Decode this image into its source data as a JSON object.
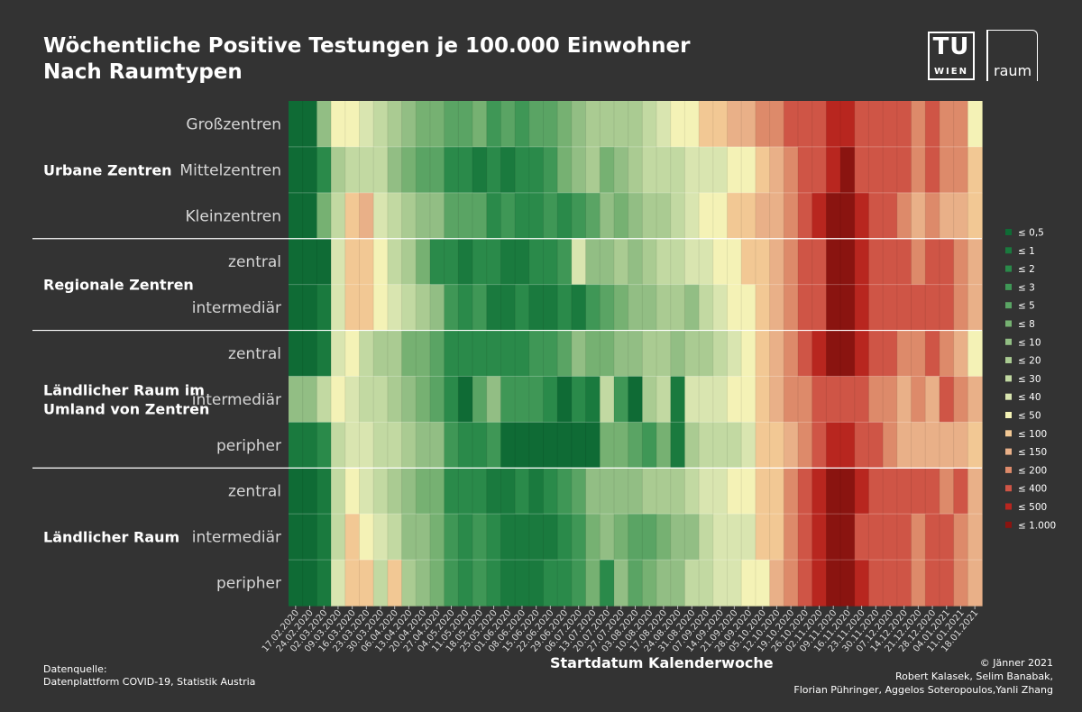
{
  "header": {
    "title_line1": "Wöchentliche Positive Testungen je 100.000 Einwohner",
    "title_line2": "Nach Raumtypen"
  },
  "logos": {
    "tu_text": "TU",
    "wien_text": "WIEN",
    "raum_text": "raum"
  },
  "footer": {
    "source_line1": "Datenquelle:",
    "source_line2": "Datenplattform COVID-19, Statistik Austria",
    "credit_line1": "© Jänner 2021",
    "credit_line2": "Robert Kalasek, Selim Banabak,",
    "credit_line3": "Florian Pühringer, Aggelos Soteropoulos,Yanli Zhang"
  },
  "chart_data": {
    "type": "heatmap",
    "xlabel": "Startdatum Kalenderwoche",
    "x": [
      "17.02.2020",
      "24.02.2020",
      "02.03.2020",
      "09.03.2020",
      "16.03.2020",
      "23.03.2020",
      "30.03.2020",
      "06.04.2020",
      "13.04.2020",
      "20.04.2020",
      "27.04.2020",
      "04.05.2020",
      "11.05.2020",
      "18.05.2020",
      "25.05.2020",
      "01.06.2020",
      "08.06.2020",
      "15.06.2020",
      "22.06.2020",
      "29.06.2020",
      "06.07.2020",
      "13.07.2020",
      "20.07.2020",
      "27.07.2020",
      "03.08.2020",
      "10.08.2020",
      "17.08.2020",
      "24.08.2020",
      "31.08.2020",
      "07.09.2020",
      "14.09.2020",
      "21.09.2020",
      "28.09.2020",
      "05.10.2020",
      "12.10.2020",
      "19.10.2020",
      "26.10.2020",
      "02.11.2020",
      "09.11.2020",
      "16.11.2020",
      "23.11.2020",
      "30.11.2020",
      "07.12.2020",
      "14.12.2020",
      "21.12.2020",
      "28.12.2020",
      "04.01.2021",
      "11.01.2021",
      "18.01.2021"
    ],
    "groups": [
      {
        "name": "Urbane Zentren",
        "rows": [
          "Großzentren",
          "Mittelzentren",
          "Kleinzentren"
        ]
      },
      {
        "name": "Regionale Zentren",
        "rows": [
          "zentral",
          "intermediär"
        ]
      },
      {
        "name": "Ländlicher Raum im Umland von Zentren",
        "rows": [
          "zentral",
          "intermediär",
          "peripher"
        ]
      },
      {
        "name": "Ländlicher Raum",
        "rows": [
          "zentral",
          "intermediär",
          "peripher"
        ]
      }
    ],
    "legend": {
      "labels": [
        "≤ 0,5",
        "≤ 1",
        "≤ 2",
        "≤ 3",
        "≤ 5",
        "≤ 8",
        "≤ 10",
        "≤ 20",
        "≤ 30",
        "≤ 40",
        "≤ 50",
        "≤ 100",
        "≤ 150",
        "≤ 200",
        "≤ 400",
        "≤ 500",
        "≤ 1.000"
      ],
      "colors": [
        "#0f6b35",
        "#1a7a3e",
        "#2a8a4a",
        "#3f9756",
        "#5aa464",
        "#76b172",
        "#92be84",
        "#aacb92",
        "#c2d9a2",
        "#d9e5b0",
        "#f4f2b6",
        "#f2c894",
        "#e9b088",
        "#dd8a6a",
        "#cf5546",
        "#b8261f",
        "#8a1410"
      ]
    },
    "values": [
      [
        0,
        0,
        6,
        10,
        10,
        9,
        8,
        7,
        6,
        5,
        5,
        4,
        4,
        5,
        3,
        4,
        3,
        4,
        4,
        5,
        6,
        7,
        7,
        7,
        7,
        8,
        9,
        10,
        10,
        11,
        11,
        12,
        12,
        13,
        13,
        14,
        14,
        14,
        15,
        15,
        14,
        14,
        14,
        14,
        13,
        14,
        13,
        13,
        10
      ],
      [
        0,
        0,
        2,
        7,
        8,
        8,
        8,
        6,
        5,
        4,
        4,
        2,
        2,
        1,
        2,
        1,
        2,
        2,
        3,
        5,
        6,
        7,
        5,
        6,
        7,
        8,
        8,
        8,
        9,
        9,
        9,
        10,
        10,
        11,
        12,
        13,
        14,
        14,
        15,
        16,
        14,
        14,
        14,
        14,
        13,
        14,
        13,
        13,
        11
      ],
      [
        0,
        0,
        5,
        8,
        11,
        12,
        9,
        8,
        7,
        6,
        6,
        4,
        4,
        4,
        2,
        3,
        2,
        2,
        3,
        2,
        3,
        4,
        6,
        5,
        6,
        7,
        7,
        8,
        9,
        10,
        10,
        11,
        11,
        12,
        12,
        13,
        14,
        15,
        16,
        16,
        15,
        14,
        14,
        13,
        12,
        13,
        12,
        12,
        11
      ],
      [
        0,
        0,
        0,
        9,
        11,
        11,
        10,
        8,
        7,
        5,
        2,
        2,
        1,
        2,
        2,
        1,
        1,
        2,
        2,
        3,
        9,
        6,
        6,
        7,
        6,
        7,
        8,
        8,
        9,
        9,
        10,
        10,
        11,
        11,
        12,
        13,
        14,
        14,
        16,
        16,
        15,
        14,
        14,
        14,
        13,
        14,
        14,
        13,
        12
      ],
      [
        0,
        0,
        1,
        9,
        11,
        11,
        10,
        9,
        8,
        7,
        6,
        3,
        2,
        3,
        1,
        1,
        2,
        1,
        1,
        2,
        1,
        3,
        4,
        5,
        6,
        6,
        7,
        7,
        6,
        8,
        9,
        10,
        10,
        11,
        12,
        13,
        14,
        14,
        16,
        16,
        15,
        14,
        14,
        14,
        14,
        14,
        14,
        13,
        12
      ],
      [
        0,
        0,
        1,
        9,
        10,
        8,
        7,
        7,
        5,
        5,
        4,
        2,
        2,
        2,
        2,
        2,
        2,
        3,
        3,
        4,
        6,
        5,
        5,
        6,
        6,
        7,
        7,
        6,
        7,
        7,
        8,
        9,
        10,
        11,
        12,
        13,
        14,
        15,
        16,
        16,
        15,
        14,
        14,
        13,
        13,
        14,
        13,
        12,
        10
      ],
      [
        6,
        6,
        8,
        10,
        9,
        8,
        8,
        7,
        6,
        5,
        4,
        2,
        0,
        4,
        6,
        3,
        3,
        3,
        2,
        0,
        2,
        1,
        8,
        3,
        0,
        7,
        8,
        1,
        9,
        9,
        9,
        10,
        10,
        11,
        12,
        13,
        13,
        14,
        14,
        14,
        14,
        13,
        13,
        12,
        13,
        12,
        14,
        13,
        12
      ],
      [
        1,
        1,
        2,
        8,
        9,
        9,
        8,
        8,
        7,
        6,
        6,
        3,
        2,
        2,
        3,
        0,
        0,
        0,
        0,
        0,
        0,
        0,
        5,
        5,
        4,
        3,
        5,
        1,
        7,
        8,
        8,
        8,
        9,
        11,
        11,
        12,
        13,
        14,
        15,
        15,
        14,
        14,
        13,
        12,
        12,
        12,
        12,
        12,
        11
      ],
      [
        0,
        0,
        1,
        8,
        10,
        9,
        8,
        7,
        6,
        5,
        5,
        2,
        2,
        2,
        1,
        1,
        2,
        1,
        2,
        3,
        4,
        6,
        6,
        6,
        6,
        7,
        7,
        7,
        8,
        9,
        9,
        10,
        10,
        11,
        11,
        13,
        14,
        15,
        16,
        16,
        15,
        14,
        14,
        14,
        14,
        14,
        13,
        14,
        12
      ],
      [
        0,
        0,
        1,
        8,
        11,
        10,
        9,
        8,
        6,
        6,
        5,
        3,
        2,
        3,
        2,
        1,
        1,
        1,
        1,
        2,
        3,
        5,
        6,
        5,
        4,
        4,
        5,
        6,
        6,
        8,
        9,
        9,
        9,
        11,
        11,
        13,
        14,
        15,
        16,
        16,
        14,
        14,
        14,
        14,
        13,
        14,
        14,
        13,
        12
      ],
      [
        0,
        0,
        1,
        9,
        11,
        11,
        8,
        11,
        7,
        6,
        5,
        3,
        2,
        3,
        2,
        1,
        1,
        1,
        2,
        2,
        3,
        5,
        2,
        6,
        4,
        5,
        6,
        6,
        8,
        8,
        9,
        9,
        10,
        10,
        12,
        13,
        14,
        15,
        16,
        16,
        15,
        14,
        14,
        14,
        13,
        14,
        14,
        13,
        12
      ]
    ]
  }
}
